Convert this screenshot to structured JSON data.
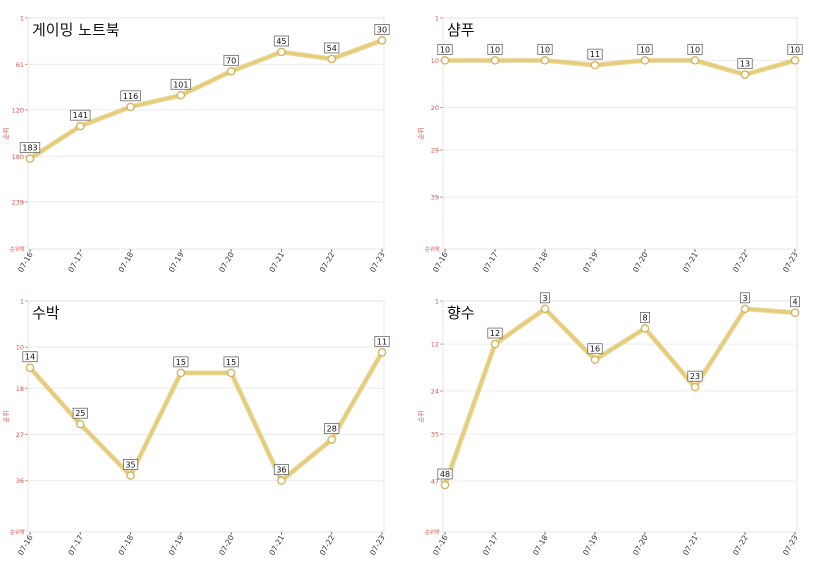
{
  "chart_data": [
    {
      "type": "line",
      "title": "게이밍 노트북",
      "ylabel": "순위",
      "y_unit_label": "순위밖",
      "y_inverted": true,
      "ylim": [
        1,
        300
      ],
      "yticks": [
        "1",
        "61",
        "120",
        "180",
        "239"
      ],
      "yticks_values": [
        1,
        61,
        120,
        180,
        239
      ],
      "categories": [
        "07-16",
        "07-17",
        "07-18",
        "07-19",
        "07-20",
        "07-21",
        "07-22",
        "07-23"
      ],
      "series": [
        {
          "values": [
            183,
            141,
            116,
            101,
            70,
            45,
            54,
            30
          ]
        }
      ],
      "data_labels": [
        "183",
        "141",
        "116",
        "101",
        "70",
        "45",
        "54",
        "30"
      ],
      "grid": true,
      "colors": {
        "line": "#e6cd78",
        "marker_fill": "#ffffff",
        "axis_text": "#d9534f"
      }
    },
    {
      "type": "line",
      "title": "샴푸",
      "ylabel": "순위",
      "y_unit_label": "순위밖",
      "y_inverted": true,
      "ylim": [
        1,
        50
      ],
      "yticks": [
        "1",
        "10",
        "20",
        "29",
        "39"
      ],
      "yticks_values": [
        1,
        10,
        20,
        29,
        39
      ],
      "categories": [
        "07-16",
        "07-17",
        "07-18",
        "07-19",
        "07-20",
        "07-21",
        "07-22",
        "07-23"
      ],
      "series": [
        {
          "values": [
            10,
            10,
            10,
            11,
            10,
            10,
            13,
            10
          ]
        }
      ],
      "data_labels": [
        "10",
        "10",
        "10",
        "11",
        "10",
        "10",
        "13",
        "10"
      ],
      "grid": true,
      "colors": {
        "line": "#e6cd78",
        "marker_fill": "#ffffff",
        "axis_text": "#d9534f"
      }
    },
    {
      "type": "line",
      "title": "수박",
      "ylabel": "순위",
      "y_unit_label": "순위밖",
      "y_inverted": true,
      "ylim": [
        1,
        46
      ],
      "yticks": [
        "1",
        "10",
        "18",
        "27",
        "36"
      ],
      "yticks_values": [
        1,
        10,
        18,
        27,
        36
      ],
      "categories": [
        "07-16",
        "07-17",
        "07-18",
        "07-19",
        "07-20",
        "07-21",
        "07-22",
        "07-23"
      ],
      "series": [
        {
          "values": [
            14,
            25,
            35,
            15,
            15,
            36,
            28,
            11
          ]
        }
      ],
      "data_labels": [
        "14",
        "25",
        "35",
        "15",
        "15",
        "36",
        "28",
        "11"
      ],
      "grid": true,
      "colors": {
        "line": "#e6cd78",
        "marker_fill": "#ffffff",
        "axis_text": "#d9534f"
      }
    },
    {
      "type": "line",
      "title": "향수",
      "ylabel": "순위",
      "y_unit_label": "순위밖",
      "y_inverted": true,
      "ylim": [
        1,
        60
      ],
      "yticks": [
        "1",
        "12",
        "24",
        "35",
        "47"
      ],
      "yticks_values": [
        1,
        12,
        24,
        35,
        47
      ],
      "categories": [
        "07-16",
        "07-17",
        "07-18",
        "07-19",
        "07-20",
        "07-21",
        "07-22",
        "07-23"
      ],
      "series": [
        {
          "values": [
            48,
            12,
            3,
            16,
            8,
            23,
            3,
            4
          ]
        }
      ],
      "data_labels": [
        "48",
        "12",
        "3",
        "16",
        "8",
        "23",
        "3",
        "4"
      ],
      "grid": true,
      "colors": {
        "line": "#e6cd78",
        "marker_fill": "#ffffff",
        "axis_text": "#d9534f"
      }
    }
  ]
}
